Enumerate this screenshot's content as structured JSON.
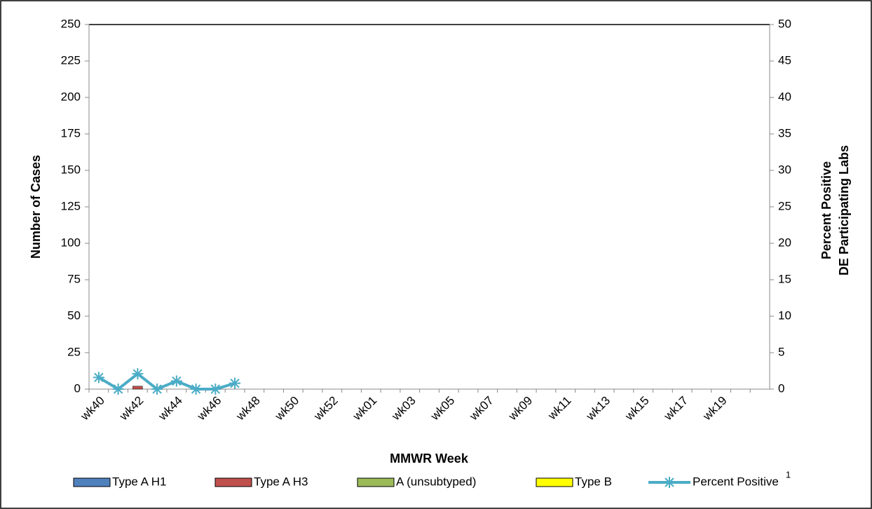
{
  "chart_data": {
    "type": "bar",
    "stacked": true,
    "x_label": "MMWR Week",
    "y_label": "Number of Cases",
    "y2_label": [
      "Percent Positive",
      "DE Participating Labs"
    ],
    "categories": [
      "wk40",
      null,
      "wk42",
      null,
      "wk44",
      null,
      "wk46",
      null,
      "wk48",
      null,
      "wk50",
      null,
      "wk52",
      null,
      "wk01",
      null,
      "wk03",
      null,
      "wk05",
      null,
      "wk07",
      null,
      "wk09",
      null,
      "wk11",
      null,
      "wk13",
      null,
      "wk15",
      null,
      "wk17",
      null,
      "wk19",
      null,
      null
    ],
    "series": [
      {
        "name": "Type A H1",
        "color": "#4f81bd",
        "values": [
          0,
          0,
          0,
          0,
          0,
          0,
          0,
          0,
          null,
          null,
          null,
          null,
          null,
          null,
          null,
          null,
          null,
          null,
          null,
          null,
          null,
          null,
          null,
          null,
          null,
          null,
          null,
          null,
          null,
          null,
          null,
          null,
          null,
          null,
          null
        ]
      },
      {
        "name": "Type A H3",
        "color": "#c0504d",
        "values": [
          0,
          0,
          2,
          0,
          0,
          0,
          0,
          0,
          null,
          null,
          null,
          null,
          null,
          null,
          null,
          null,
          null,
          null,
          null,
          null,
          null,
          null,
          null,
          null,
          null,
          null,
          null,
          null,
          null,
          null,
          null,
          null,
          null,
          null,
          null
        ]
      },
      {
        "name": "A (unsubtyped)",
        "color": "#9bbb59",
        "values": [
          0,
          0,
          0,
          0,
          0,
          0,
          0,
          0,
          null,
          null,
          null,
          null,
          null,
          null,
          null,
          null,
          null,
          null,
          null,
          null,
          null,
          null,
          null,
          null,
          null,
          null,
          null,
          null,
          null,
          null,
          null,
          null,
          null,
          null,
          null
        ]
      },
      {
        "name": "Type B",
        "color": "#ffff00",
        "values": [
          0,
          0,
          0,
          0,
          0,
          0,
          0,
          0,
          null,
          null,
          null,
          null,
          null,
          null,
          null,
          null,
          null,
          null,
          null,
          null,
          null,
          null,
          null,
          null,
          null,
          null,
          null,
          null,
          null,
          null,
          null,
          null,
          null,
          null,
          null
        ]
      },
      {
        "name": "Percent Positive",
        "name_superscript": "1",
        "type": "line",
        "axis": "y2",
        "color": "#4bacc6",
        "values": [
          1.6,
          0,
          2.1,
          0,
          1.1,
          0,
          0,
          0.8,
          null,
          null,
          null,
          null,
          null,
          null,
          null,
          null,
          null,
          null,
          null,
          null,
          null,
          null,
          null,
          null,
          null,
          null,
          null,
          null,
          null,
          null,
          null,
          null,
          null,
          null,
          null
        ]
      }
    ],
    "ylim": [
      0,
      250
    ],
    "yticks": [
      0,
      25,
      50,
      75,
      100,
      125,
      150,
      175,
      200,
      225,
      250
    ],
    "y2lim": [
      0,
      50
    ],
    "y2ticks": [
      0,
      5,
      10,
      15,
      20,
      25,
      30,
      35,
      40,
      45,
      50
    ],
    "legend": "bottom"
  }
}
